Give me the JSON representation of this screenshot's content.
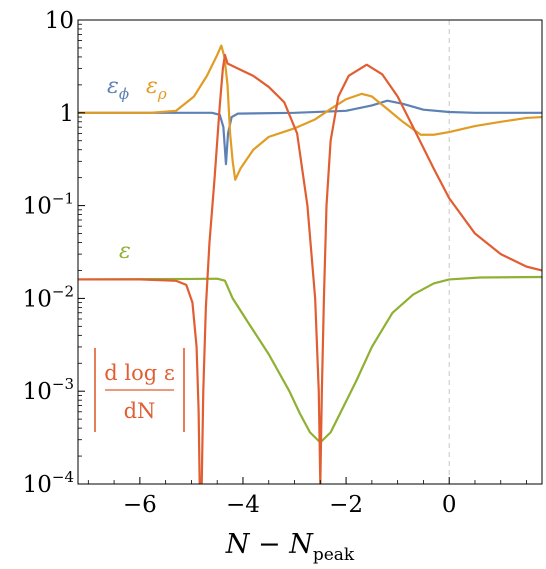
{
  "chart_data": {
    "type": "line",
    "xlabel_main": "N − N",
    "xlabel_sub": "peak",
    "ylabel": "",
    "y_scale": "log",
    "xlim": [
      -7.2,
      1.8
    ],
    "ylim": [
      0.0001,
      10
    ],
    "x_ticks": [
      {
        "value": -6,
        "label": "−6"
      },
      {
        "value": -4,
        "label": "−4"
      },
      {
        "value": -2,
        "label": "−2"
      },
      {
        "value": 0,
        "label": "0"
      }
    ],
    "y_ticks": [
      {
        "value": 10,
        "base": "10",
        "exp": ""
      },
      {
        "value": 1,
        "base": "1",
        "exp": ""
      },
      {
        "value": 0.1,
        "base": "10",
        "exp": "−1"
      },
      {
        "value": 0.01,
        "base": "10",
        "exp": "−2"
      },
      {
        "value": 0.001,
        "base": "10",
        "exp": "−3"
      },
      {
        "value": 0.0001,
        "base": "10",
        "exp": "−4"
      }
    ],
    "reference_line": {
      "x": 0,
      "style": "dashed"
    },
    "legend_placement": "inline labels",
    "series": [
      {
        "name": "ε_φ",
        "color": "#5E81B5",
        "points": [
          [
            -7.2,
            1.0
          ],
          [
            -5.0,
            1.0
          ],
          [
            -4.6,
            1.0
          ],
          [
            -4.45,
            0.95
          ],
          [
            -4.38,
            0.7
          ],
          [
            -4.33,
            0.28
          ],
          [
            -4.29,
            0.6
          ],
          [
            -4.22,
            0.9
          ],
          [
            -4.1,
            0.98
          ],
          [
            -3.0,
            1.0
          ],
          [
            -2.0,
            1.05
          ],
          [
            -1.5,
            1.2
          ],
          [
            -1.2,
            1.35
          ],
          [
            -0.9,
            1.25
          ],
          [
            -0.5,
            1.08
          ],
          [
            0.0,
            1.02
          ],
          [
            0.5,
            1.0
          ],
          [
            1.8,
            1.0
          ]
        ]
      },
      {
        "name": "ε_ρ",
        "color": "#E19C24",
        "points": [
          [
            -7.2,
            1.0
          ],
          [
            -5.8,
            1.0
          ],
          [
            -5.3,
            1.05
          ],
          [
            -4.95,
            1.5
          ],
          [
            -4.7,
            2.5
          ],
          [
            -4.5,
            4.2
          ],
          [
            -4.42,
            5.3
          ],
          [
            -4.36,
            4.0
          ],
          [
            -4.3,
            2.0
          ],
          [
            -4.25,
            0.6
          ],
          [
            -4.2,
            0.3
          ],
          [
            -4.15,
            0.19
          ],
          [
            -4.05,
            0.25
          ],
          [
            -3.8,
            0.4
          ],
          [
            -3.5,
            0.55
          ],
          [
            -3.0,
            0.68
          ],
          [
            -2.6,
            0.85
          ],
          [
            -2.3,
            1.1
          ],
          [
            -2.0,
            1.4
          ],
          [
            -1.7,
            1.6
          ],
          [
            -1.5,
            1.5
          ],
          [
            -1.2,
            1.1
          ],
          [
            -0.9,
            0.8
          ],
          [
            -0.55,
            0.58
          ],
          [
            -0.3,
            0.58
          ],
          [
            0.0,
            0.62
          ],
          [
            0.5,
            0.72
          ],
          [
            1.0,
            0.8
          ],
          [
            1.5,
            0.88
          ],
          [
            1.8,
            0.9
          ]
        ]
      },
      {
        "name": "ε",
        "color": "#8FB032",
        "points": [
          [
            -7.2,
            0.016
          ],
          [
            -5.0,
            0.0162
          ],
          [
            -4.5,
            0.0163
          ],
          [
            -4.35,
            0.0155
          ],
          [
            -4.2,
            0.01
          ],
          [
            -3.9,
            0.0055
          ],
          [
            -3.5,
            0.0025
          ],
          [
            -3.1,
            0.001
          ],
          [
            -2.9,
            0.00058
          ],
          [
            -2.7,
            0.00036
          ],
          [
            -2.5,
            0.00028
          ],
          [
            -2.3,
            0.00036
          ],
          [
            -2.1,
            0.0006
          ],
          [
            -1.8,
            0.0013
          ],
          [
            -1.5,
            0.003
          ],
          [
            -1.1,
            0.007
          ],
          [
            -0.7,
            0.011
          ],
          [
            -0.3,
            0.0145
          ],
          [
            0.0,
            0.016
          ],
          [
            0.6,
            0.0168
          ],
          [
            1.8,
            0.017
          ]
        ]
      },
      {
        "name": "|d log ε / dN|",
        "color": "#E15E32",
        "points": [
          [
            -7.2,
            0.016
          ],
          [
            -6.0,
            0.016
          ],
          [
            -5.3,
            0.0155
          ],
          [
            -5.1,
            0.014
          ],
          [
            -4.98,
            0.009
          ],
          [
            -4.9,
            0.003
          ],
          [
            -4.86,
            0.0006
          ],
          [
            -4.84,
            0.0001
          ],
          [
            -4.8,
            0.0001
          ],
          [
            -4.77,
            0.001
          ],
          [
            -4.72,
            0.008
          ],
          [
            -4.65,
            0.04
          ],
          [
            -4.55,
            0.2
          ],
          [
            -4.45,
            1.2
          ],
          [
            -4.39,
            3.0
          ],
          [
            -4.35,
            4.2
          ],
          [
            -4.3,
            3.4
          ],
          [
            -4.1,
            3.0
          ],
          [
            -3.8,
            2.5
          ],
          [
            -3.5,
            1.9
          ],
          [
            -3.2,
            1.3
          ],
          [
            -2.95,
            0.6
          ],
          [
            -2.75,
            0.1
          ],
          [
            -2.6,
            0.01
          ],
          [
            -2.53,
            0.001
          ],
          [
            -2.5,
            0.0001
          ],
          [
            -2.47,
            0.001
          ],
          [
            -2.43,
            0.01
          ],
          [
            -2.38,
            0.1
          ],
          [
            -2.3,
            0.5
          ],
          [
            -2.15,
            1.5
          ],
          [
            -1.95,
            2.5
          ],
          [
            -1.6,
            3.3
          ],
          [
            -1.3,
            2.6
          ],
          [
            -1.0,
            1.5
          ],
          [
            -0.7,
            0.7
          ],
          [
            -0.3,
            0.25
          ],
          [
            0.0,
            0.12
          ],
          [
            0.5,
            0.05
          ],
          [
            1.0,
            0.03
          ],
          [
            1.5,
            0.022
          ],
          [
            1.8,
            0.02
          ]
        ]
      }
    ],
    "annotations": {
      "eps_phi": "ε",
      "eps_phi_sub": "ϕ",
      "eps_rho": "ε",
      "eps_rho_sub": "ρ",
      "eps": "ε",
      "ratio_num": "d log ε",
      "ratio_den": "dN"
    }
  }
}
